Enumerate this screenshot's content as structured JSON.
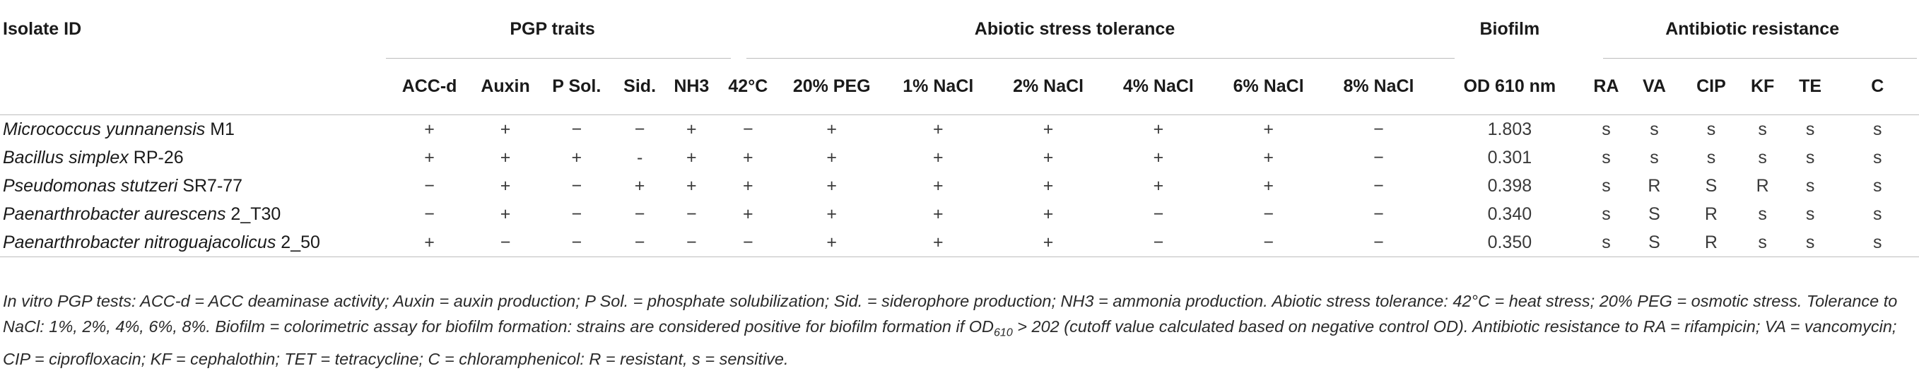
{
  "table": {
    "first_header": "Isolate ID",
    "groups": [
      {
        "label": "PGP traits",
        "span": 5
      },
      {
        "label": "Abiotic stress tolerance",
        "span": 7
      },
      {
        "label": "Biofilm",
        "span": 1
      },
      {
        "label": "Antibiotic resistance",
        "span": 6
      }
    ],
    "columns": [
      "ACC-d",
      "Auxin",
      "P Sol.",
      "Sid.",
      "NH3",
      "42°C",
      "20% PEG",
      "1% NaCl",
      "2% NaCl",
      "4% NaCl",
      "6% NaCl",
      "8% NaCl",
      "OD 610 nm",
      "RA",
      "VA",
      "CIP",
      "KF",
      "TE",
      "C"
    ],
    "rows": [
      {
        "genus": "Micrococcus yunnanensis",
        "strain": "M1",
        "values": [
          "+",
          "+",
          "−",
          "−",
          "+",
          "−",
          "+",
          "+",
          "+",
          "+",
          "+",
          "−",
          "1.803",
          "s",
          "s",
          "s",
          "s",
          "s",
          "s"
        ]
      },
      {
        "genus": "Bacillus simplex",
        "strain": "RP-26",
        "values": [
          "+",
          "+",
          "+",
          "-",
          "+",
          "+",
          "+",
          "+",
          "+",
          "+",
          "+",
          "−",
          "0.301",
          "s",
          "s",
          "s",
          "s",
          "s",
          "s"
        ]
      },
      {
        "genus": "Pseudomonas stutzeri",
        "strain": "SR7-77",
        "values": [
          "−",
          "+",
          "−",
          "+",
          "+",
          "+",
          "+",
          "+",
          "+",
          "+",
          "+",
          "−",
          "0.398",
          "s",
          "R",
          "S",
          "R",
          "s",
          "s"
        ]
      },
      {
        "genus": "Paenarthrobacter aurescens",
        "strain": "2_T30",
        "values": [
          "−",
          "+",
          "−",
          "−",
          "−",
          "+",
          "+",
          "+",
          "+",
          "−",
          "−",
          "−",
          "0.340",
          "s",
          "S",
          "R",
          "s",
          "s",
          "s"
        ]
      },
      {
        "genus": "Paenarthrobacter nitroguajacolicus",
        "strain": "2_50",
        "values": [
          "+",
          "−",
          "−",
          "−",
          "−",
          "−",
          "+",
          "+",
          "+",
          "−",
          "−",
          "−",
          "0.350",
          "s",
          "S",
          "R",
          "s",
          "s",
          "s"
        ]
      }
    ]
  },
  "footnote": {
    "part1": "In vitro PGP tests: ACC-d = ACC deaminase activity; Auxin = auxin production; P Sol. = phosphate solubilization; Sid. = siderophore production; NH3 = ammonia production. Abiotic stress tolerance: 42°C = heat stress; 20% PEG = osmotic stress. Tolerance to NaCl: 1%, 2%, 4%, 6%, 8%. Biofilm = colorimetric assay for biofilm formation: strains are considered positive for biofilm formation if OD",
    "sub": "610",
    "part2": " > 202 (cutoff value calculated based on negative control OD). Antibiotic resistance to RA = rifampicin; VA = vancomycin; CIP = ciprofloxacin; KF = cephalothin; TET = tetracycline; C = chloramphenicol: R = resistant, s = sensitive."
  }
}
